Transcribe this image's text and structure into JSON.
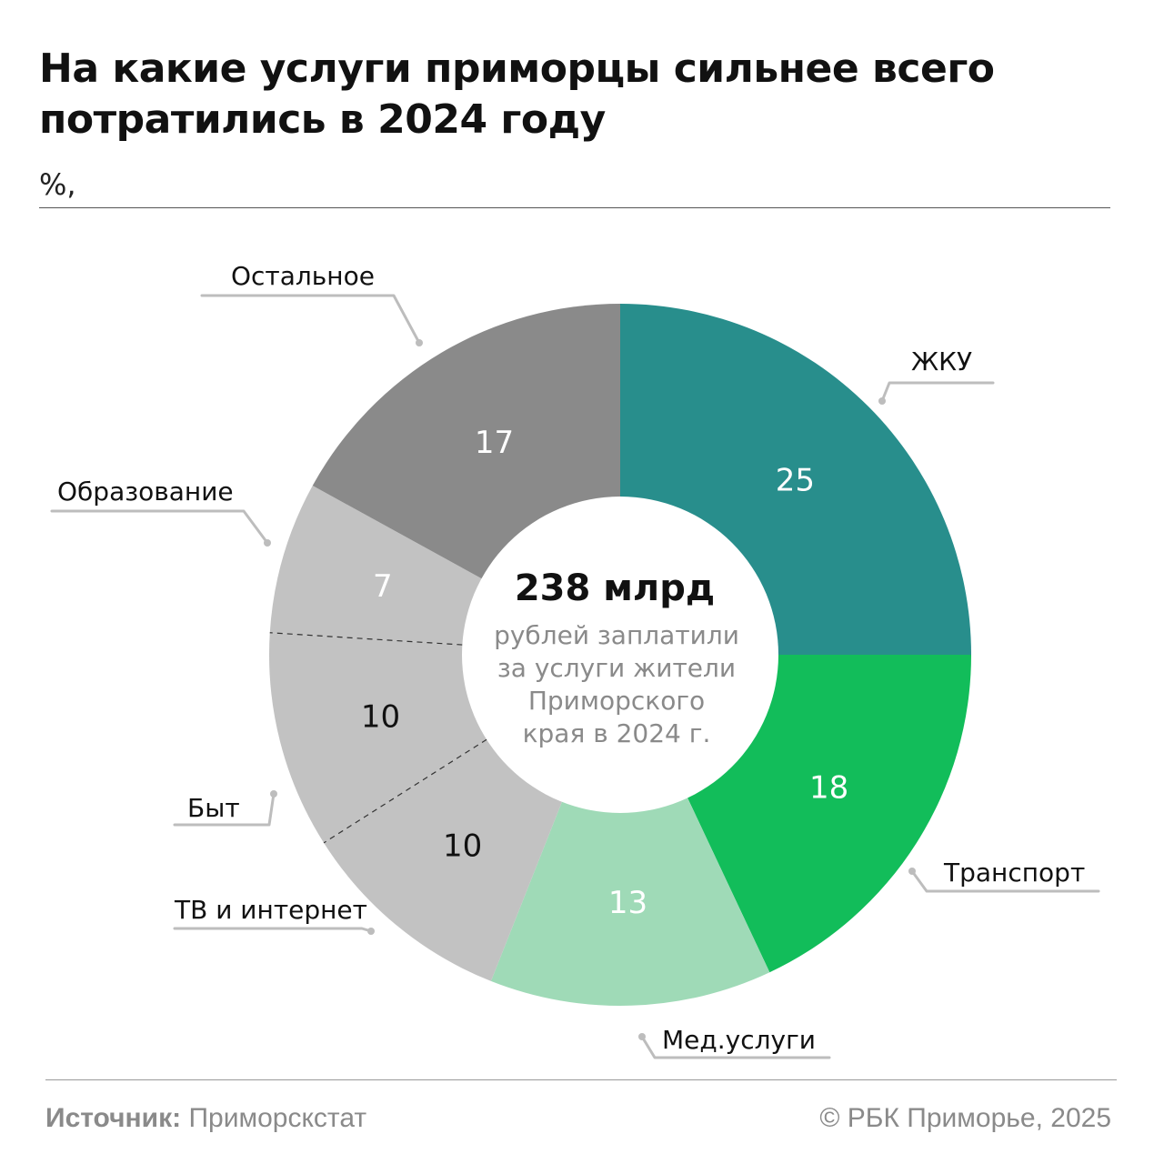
{
  "header": {
    "title_line1": "На какие услуги приморцы сильнее всего",
    "title_line2": "потратились в 2024 году",
    "subtitle": "%,"
  },
  "center": {
    "headline": "238 млрд",
    "lines": [
      "рублей заплатили",
      "за услуги жители",
      "Приморского",
      "края в 2024 г."
    ]
  },
  "chart_data": {
    "type": "pie",
    "style": "donut",
    "title": "На какие услуги приморцы сильнее всего потратились в 2024 году",
    "unit": "%,",
    "categories": [
      "ЖКУ",
      "Транспорт",
      "Мед.услуги",
      "ТВ и интернет",
      "Быт",
      "Образование",
      "Остальное"
    ],
    "values": [
      25,
      18,
      13,
      10,
      10,
      7,
      17
    ],
    "colors": [
      "#288e8c",
      "#12bd5a",
      "#9fdab7",
      "#c2c2c2",
      "#c2c2c2",
      "#c2c2c2",
      "#8a8a8a"
    ],
    "value_label_colors": [
      "#ffffff",
      "#ffffff",
      "#ffffff",
      "#111111",
      "#111111",
      "#ffffff",
      "#ffffff"
    ],
    "dashed_dividers_between": [
      [
        "ТВ и интернет",
        "Быт"
      ],
      [
        "Быт",
        "Образование"
      ]
    ],
    "start": "top",
    "direction": "clockwise"
  },
  "footer": {
    "source_label": "Источник:",
    "source_value": "Приморскстат",
    "copyright": "© РБК Приморье, 2025"
  }
}
